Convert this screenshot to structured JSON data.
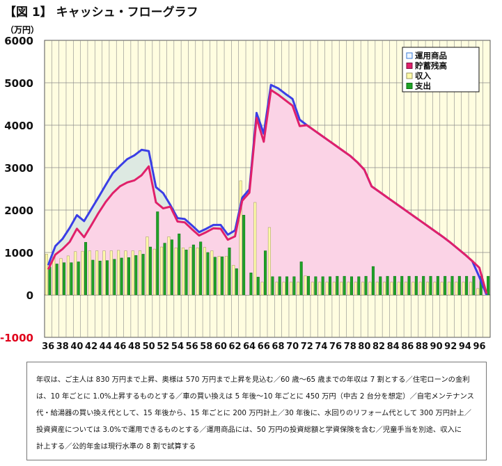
{
  "title": "【図 1】 キャッシュ・フローグラフ",
  "colors": {
    "plot_bg": "#fffde0",
    "grid": "#8a8a8a",
    "asset_line": "#3a3ee6",
    "asset_fill": "#dde9e2",
    "savings_line": "#e0206a",
    "savings_fill": "#fbd3e6",
    "income_bar": "#fefaa8",
    "expense_bar": "#1fa327"
  },
  "chart_data": {
    "type": "bar",
    "y_unit": "（万円）",
    "ylim": [
      -1000,
      6000
    ],
    "y_ticks": [
      "6000",
      "5000",
      "4000",
      "3000",
      "2000",
      "1000",
      "0",
      "-1000"
    ],
    "x_tick_labels": [
      "36",
      "38",
      "40",
      "42",
      "44",
      "46",
      "48",
      "50",
      "52",
      "54",
      "56",
      "58",
      "60",
      "62",
      "64",
      "66",
      "68",
      "70",
      "72",
      "74",
      "76",
      "78",
      "80",
      "82",
      "84",
      "86",
      "88",
      "90",
      "92",
      "94",
      "96"
    ],
    "x": [
      36,
      37,
      38,
      39,
      40,
      41,
      42,
      43,
      44,
      45,
      46,
      47,
      48,
      49,
      50,
      51,
      52,
      53,
      54,
      55,
      56,
      57,
      58,
      59,
      60,
      61,
      62,
      63,
      64,
      65,
      66,
      67,
      68,
      69,
      70,
      71,
      72,
      73,
      74,
      75,
      76,
      77,
      78,
      79,
      80,
      81,
      82,
      83,
      84,
      85,
      86,
      87,
      88,
      89,
      90,
      91,
      92,
      93,
      94,
      95,
      96,
      97
    ],
    "legend_position": "top-right",
    "grid": true,
    "series": [
      {
        "name": "運用商品",
        "kind": "line-area",
        "values": [
          700,
          1150,
          1320,
          1580,
          1880,
          1740,
          2020,
          2300,
          2590,
          2870,
          3040,
          3200,
          3290,
          3420,
          3390,
          2540,
          2400,
          2120,
          1810,
          1790,
          1640,
          1480,
          1560,
          1650,
          1650,
          1420,
          1520,
          2290,
          2490,
          4290,
          3800,
          4950,
          4870,
          4740,
          4620,
          4130,
          4000,
          3880,
          3760,
          3640,
          3520,
          3400,
          3280,
          3130,
          2950,
          2560,
          2440,
          2320,
          2200,
          2080,
          1960,
          1840,
          1720,
          1600,
          1480,
          1360,
          1230,
          1090,
          950,
          800,
          420,
          0
        ]
      },
      {
        "name": "貯蓄残高",
        "kind": "line-area",
        "values": [
          600,
          950,
          1080,
          1250,
          1560,
          1360,
          1640,
          1930,
          2190,
          2400,
          2560,
          2650,
          2700,
          2820,
          3030,
          2180,
          2040,
          2080,
          1730,
          1710,
          1550,
          1400,
          1480,
          1570,
          1560,
          1300,
          1380,
          2220,
          2410,
          4170,
          3610,
          4830,
          4720,
          4590,
          4460,
          3980,
          4000,
          3880,
          3760,
          3640,
          3520,
          3400,
          3280,
          3130,
          2950,
          2560,
          2440,
          2320,
          2200,
          2080,
          1960,
          1840,
          1720,
          1600,
          1480,
          1360,
          1230,
          1090,
          950,
          800,
          640,
          30
        ]
      },
      {
        "name": "収入",
        "kind": "bar",
        "values": [
          960,
          890,
          860,
          920,
          1020,
          1030,
          1040,
          1040,
          1040,
          1040,
          1050,
          1040,
          1040,
          1040,
          1370,
          1080,
          1130,
          1370,
          1110,
          1110,
          1120,
          1110,
          1120,
          1040,
          910,
          910,
          700,
          2690,
          0,
          2180,
          300,
          1590,
          300,
          300,
          300,
          300,
          450,
          300,
          300,
          300,
          300,
          300,
          300,
          300,
          300,
          300,
          300,
          300,
          300,
          300,
          300,
          300,
          300,
          300,
          300,
          300,
          300,
          300,
          300,
          300,
          150,
          0
        ]
      },
      {
        "name": "支出",
        "kind": "bar",
        "values": [
          660,
          730,
          760,
          760,
          780,
          1240,
          820,
          800,
          810,
          840,
          870,
          880,
          930,
          960,
          1130,
          1960,
          1220,
          1300,
          1440,
          1060,
          1180,
          1250,
          1000,
          890,
          900,
          1110,
          620,
          1880,
          520,
          420,
          1040,
          430,
          430,
          430,
          430,
          780,
          440,
          430,
          430,
          430,
          440,
          440,
          430,
          430,
          440,
          670,
          430,
          440,
          440,
          440,
          440,
          440,
          440,
          440,
          440,
          440,
          440,
          440,
          440,
          440,
          440,
          440
        ]
      }
    ]
  },
  "note_lines": [
    "年収は、ご主人は 830 万円まで上昇、奥様は 570 万円まで上昇を見込む／60 歳～65 歳までの年収は 7 割とする／住宅ローンの金利",
    "は、10 年ごとに 1.0%上昇するものとする／車の買い換えは 5 年後～10 年ごとに 450 万円（中古 2 台分を想定）／自宅メンテナンス",
    "代・給湯器の買い換え代として、15 年後から、15 年ごとに 200 万円計上／30 年後に、水回りのリフォーム代として 300 万円計上／",
    "投資資産については 3.0%で運用できるものとする／運用商品には、50 万円の投資総額と学資保険を含む／児童手当を別途、収入に",
    "計上する／公的年金は現行水準の 8 割で試算する"
  ]
}
